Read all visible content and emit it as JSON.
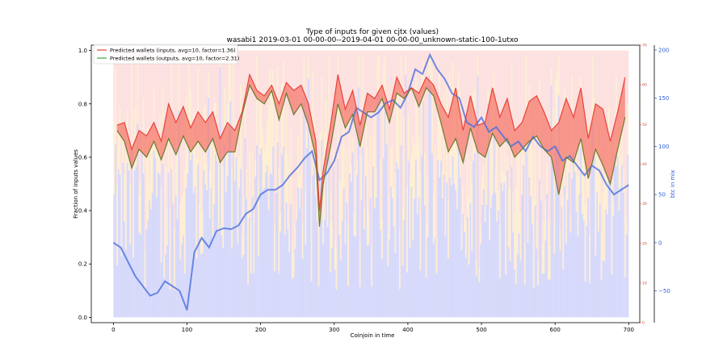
{
  "chart_data": {
    "type": "line",
    "title": "Type of inputs for given cjtx (values)",
    "subtitle": "wasabi1 2019-03-01 00-00-00--2019-04-01 00-00-00_unknown-static-100-1utxo",
    "xlabel": "Coinjoin in time",
    "ylabel": "Fraction of inputs values",
    "y2label": "btc in mix",
    "xlim": [
      -30,
      715
    ],
    "ylim": [
      -0.02,
      1.02
    ],
    "y2lim": [
      -83,
      205
    ],
    "y3lim": [
      0,
      70
    ],
    "xticks": [
      0,
      100,
      200,
      300,
      400,
      500,
      600,
      700
    ],
    "yticks": [
      0.0,
      0.2,
      0.4,
      0.6,
      0.8,
      1.0
    ],
    "y2ticks": [
      -50,
      0,
      50,
      100,
      150,
      200
    ],
    "y3ticks": [
      0,
      10,
      20,
      30,
      40,
      50,
      60,
      70
    ],
    "x_tick_labels": [
      "0",
      "100",
      "200",
      "300",
      "400",
      "500",
      "600",
      "700"
    ],
    "y_tick_labels": [
      "0.0",
      "0.2",
      "0.4",
      "0.6",
      "0.8",
      "1.0"
    ],
    "y2_tick_labels": [
      "−50",
      "0",
      "50",
      "100",
      "150",
      "200"
    ],
    "y3_tick_labels": [
      "0",
      "10",
      "20",
      "30",
      "40",
      "50",
      "60",
      "70"
    ],
    "grid": false,
    "legend_position": "top-left",
    "legend": [
      {
        "label": "Predicted wallets (inputs, avg=10, factor=1.36)",
        "color": "#e8433a"
      },
      {
        "label": "Predicted wallets (outputs, avg=10, factor=2.31)",
        "color": "#3aa63a"
      }
    ],
    "colors": {
      "inputs": "#e8433a",
      "outputs": "#3aa63a",
      "fill_between": "#f46a5e",
      "btc": "#4a6fdd",
      "bg_blue": "#b7b9f7",
      "bg_orange": "#fde3b8",
      "bg_pink": "#f9c9c6",
      "right_axis_red": "#d0483b",
      "right_axis_blue": "#2e5ed6"
    },
    "series": [
      {
        "name": "Predicted wallets (inputs, avg=10, factor=1.36)",
        "x": [
          5,
          15,
          25,
          35,
          45,
          55,
          65,
          75,
          85,
          95,
          105,
          115,
          125,
          135,
          145,
          155,
          165,
          175,
          185,
          195,
          205,
          215,
          225,
          235,
          245,
          255,
          265,
          275,
          280,
          285,
          295,
          305,
          315,
          325,
          335,
          345,
          355,
          365,
          375,
          385,
          395,
          405,
          415,
          425,
          435,
          445,
          455,
          465,
          475,
          485,
          495,
          505,
          515,
          525,
          535,
          545,
          555,
          565,
          575,
          585,
          595,
          605,
          615,
          625,
          635,
          645,
          655,
          665,
          675,
          685,
          695
        ],
        "values": [
          0.72,
          0.73,
          0.63,
          0.7,
          0.68,
          0.73,
          0.66,
          0.8,
          0.73,
          0.79,
          0.71,
          0.77,
          0.73,
          0.77,
          0.67,
          0.73,
          0.7,
          0.77,
          0.91,
          0.85,
          0.83,
          0.87,
          0.8,
          0.88,
          0.85,
          0.87,
          0.8,
          0.66,
          0.4,
          0.55,
          0.72,
          0.91,
          0.78,
          0.85,
          0.72,
          0.84,
          0.82,
          0.87,
          0.78,
          0.9,
          0.84,
          0.86,
          0.84,
          0.9,
          0.87,
          0.8,
          0.75,
          0.86,
          0.7,
          0.83,
          0.72,
          0.73,
          0.86,
          0.75,
          0.82,
          0.7,
          0.73,
          0.81,
          0.83,
          0.77,
          0.7,
          0.73,
          0.82,
          0.75,
          0.86,
          0.67,
          0.8,
          0.78,
          0.66,
          0.77,
          0.9
        ]
      },
      {
        "name": "Predicted wallets (outputs, avg=10, factor=2.31)",
        "x": [
          5,
          15,
          25,
          35,
          45,
          55,
          65,
          75,
          85,
          95,
          105,
          115,
          125,
          135,
          145,
          155,
          165,
          175,
          185,
          195,
          205,
          215,
          225,
          235,
          245,
          255,
          265,
          275,
          280,
          285,
          295,
          305,
          315,
          325,
          335,
          345,
          355,
          365,
          375,
          385,
          395,
          405,
          415,
          425,
          435,
          445,
          455,
          465,
          475,
          485,
          495,
          505,
          515,
          525,
          535,
          545,
          555,
          565,
          575,
          585,
          595,
          605,
          615,
          625,
          635,
          645,
          655,
          665,
          675,
          685,
          695
        ],
        "values": [
          0.7,
          0.66,
          0.56,
          0.63,
          0.6,
          0.66,
          0.59,
          0.67,
          0.61,
          0.68,
          0.62,
          0.66,
          0.62,
          0.67,
          0.58,
          0.62,
          0.62,
          0.76,
          0.87,
          0.82,
          0.8,
          0.85,
          0.74,
          0.84,
          0.76,
          0.8,
          0.72,
          0.6,
          0.34,
          0.5,
          0.64,
          0.8,
          0.71,
          0.76,
          0.64,
          0.77,
          0.77,
          0.82,
          0.73,
          0.84,
          0.82,
          0.86,
          0.79,
          0.86,
          0.83,
          0.73,
          0.62,
          0.67,
          0.58,
          0.71,
          0.62,
          0.6,
          0.69,
          0.64,
          0.67,
          0.6,
          0.63,
          0.66,
          0.68,
          0.63,
          0.6,
          0.46,
          0.6,
          0.58,
          0.67,
          0.52,
          0.63,
          0.57,
          0.5,
          0.63,
          0.75
        ]
      },
      {
        "name": "btc in mix",
        "axis": "right",
        "x": [
          0,
          10,
          20,
          30,
          40,
          50,
          60,
          70,
          80,
          90,
          100,
          110,
          120,
          130,
          140,
          150,
          160,
          170,
          180,
          190,
          200,
          210,
          220,
          230,
          240,
          250,
          260,
          270,
          280,
          290,
          300,
          310,
          320,
          330,
          340,
          350,
          360,
          370,
          380,
          390,
          400,
          410,
          420,
          430,
          440,
          450,
          460,
          470,
          480,
          490,
          500,
          510,
          520,
          530,
          540,
          550,
          560,
          570,
          580,
          590,
          600,
          610,
          620,
          630,
          640,
          650,
          660,
          670,
          680,
          690,
          700
        ],
        "values": [
          0,
          -5,
          -20,
          -35,
          -45,
          -55,
          -52,
          -40,
          -45,
          -50,
          -70,
          -10,
          5,
          -5,
          12,
          15,
          14,
          18,
          30,
          35,
          50,
          55,
          55,
          60,
          70,
          78,
          88,
          95,
          65,
          72,
          85,
          110,
          115,
          140,
          135,
          130,
          135,
          145,
          148,
          140,
          155,
          180,
          175,
          195,
          180,
          170,
          155,
          150,
          125,
          120,
          130,
          115,
          120,
          110,
          100,
          105,
          95,
          110,
          100,
          95,
          100,
          85,
          90,
          80,
          70,
          80,
          75,
          60,
          50,
          55,
          60
        ]
      }
    ]
  }
}
